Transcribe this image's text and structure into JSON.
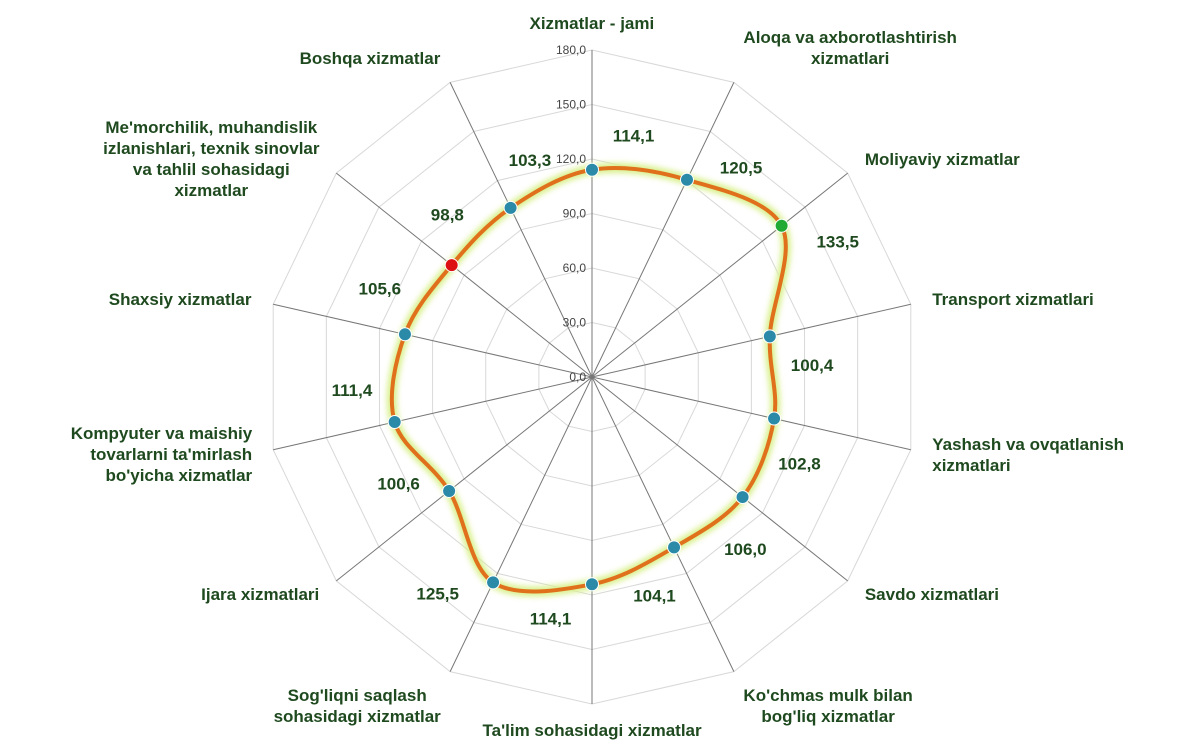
{
  "chart_data": {
    "type": "radar",
    "categories": [
      "Xizmatlar - jami",
      "Aloqa va axborotlashtirish\nxizmatlari",
      "Moliyaviy xizmatlar",
      "Transport xizmatlari",
      "Yashash va ovqatlanish\nxizmatlari",
      "Savdo xizmatlari",
      "Ko'chmas mulk bilan\nbog'liq xizmatlar",
      "Ta'lim sohasidagi xizmatlar",
      "Sog'liqni saqlash\nsohasidagi xizmatlar",
      "Ijara xizmatlari",
      "Kompyuter va maishiy\ntovarlarni ta'mirlash\nbo'yicha xizmatlar",
      "Shaxsiy xizmatlar",
      "Me'morchilik, muhandislik\nizlanishlari, texnik  sinovlar\nva tahlil sohasidagi\nxizmatlar",
      "Boshqa xizmatlar"
    ],
    "values": [
      114.1,
      120.5,
      133.5,
      100.4,
      102.8,
      106.0,
      104.1,
      114.1,
      125.5,
      100.6,
      111.4,
      105.6,
      98.8,
      103.3
    ],
    "value_labels": [
      "114,1",
      "120,5",
      "133,5",
      "100,4",
      "102,8",
      "106,0",
      "104,1",
      "114,1",
      "125,5",
      "100,6",
      "111,4",
      "105,6",
      "98,8",
      "103,3"
    ],
    "color": "#e0701c",
    "marker_color": "#2a8aa8",
    "highlight": {
      "max": {
        "index": 2,
        "color": "#22aa33"
      },
      "min": {
        "index": 12,
        "color": "#dd1111"
      }
    },
    "ylim": [
      0,
      180
    ],
    "yticks": [
      {
        "value": 0,
        "label": "0,0"
      },
      {
        "value": 30,
        "label": "30,0"
      },
      {
        "value": 60,
        "label": "60,0"
      },
      {
        "value": 90,
        "label": "90,0"
      },
      {
        "value": 120,
        "label": "120,0"
      },
      {
        "value": 150,
        "label": "150,0"
      },
      {
        "value": 180,
        "label": "180,0"
      }
    ],
    "grid": true
  }
}
